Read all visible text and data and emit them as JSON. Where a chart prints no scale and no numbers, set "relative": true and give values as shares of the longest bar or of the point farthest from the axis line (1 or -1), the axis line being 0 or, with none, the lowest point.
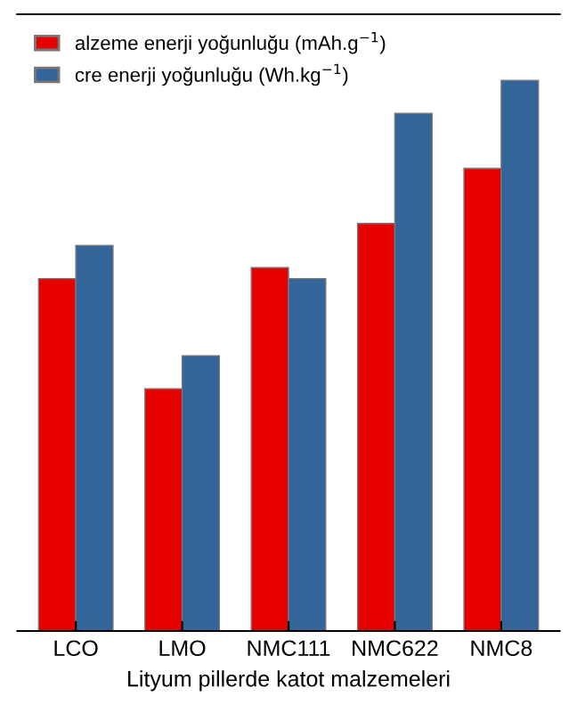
{
  "chart_data": {
    "type": "bar",
    "relative": true,
    "categories": [
      "LCO",
      "LMO",
      "NMC111",
      "NMC622",
      "NMC8"
    ],
    "xlabel": "Lityum pillerde katot malzemeleri",
    "series": [
      {
        "name": "alzeme enerji yoğunluğu (mAh.g$^{−1}$)",
        "color": "#e60000",
        "values": [
          0.64,
          0.44,
          0.66,
          0.74,
          0.84
        ]
      },
      {
        "name": "cre enerji yoğunluğu (Wh.kg$^{−1}$)",
        "color": "#34659a",
        "values": [
          0.7,
          0.5,
          0.64,
          0.94,
          1.0
        ]
      }
    ],
    "legend": "top left",
    "grid": false
  }
}
